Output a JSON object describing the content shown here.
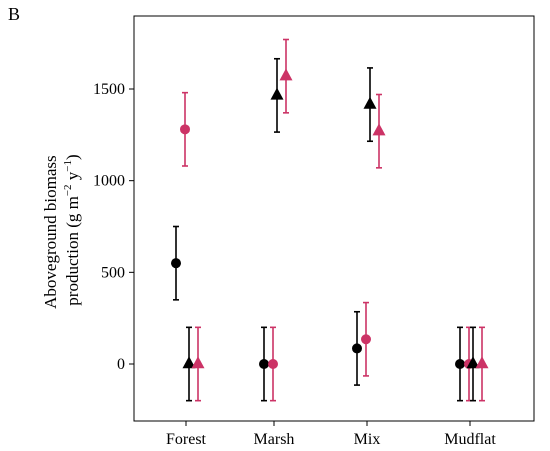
{
  "panel_label": "B",
  "chart_data": {
    "type": "scatter",
    "categories": [
      "Forest",
      "Marsh",
      "Mix",
      "Mudflat"
    ],
    "ylabel_line1": "Aboveground biomass",
    "ylabel_line2_pre": "production (g m",
    "ylabel_line2_sup1": "−2",
    "ylabel_line2_mid": " y",
    "ylabel_line2_sup2": "−1",
    "ylabel_line2_post": ")",
    "yticks": [
      0,
      500,
      1000,
      1500
    ],
    "ylim": [
      -210,
      1850
    ],
    "grid": false,
    "colors": {
      "black": "#000000",
      "pink": "#cc3366"
    },
    "series": [
      {
        "color": "black",
        "marker": "circle",
        "values": [
          550,
          0,
          85,
          0
        ],
        "err_low": [
          350,
          -200,
          -115,
          -200
        ],
        "err_high": [
          750,
          200,
          285,
          200
        ]
      },
      {
        "color": "pink",
        "marker": "circle",
        "values": [
          1280,
          0,
          135,
          0
        ],
        "err_low": [
          1080,
          -200,
          -65,
          -200
        ],
        "err_high": [
          1480,
          200,
          335,
          200
        ]
      },
      {
        "color": "black",
        "marker": "triangle",
        "values": [
          0,
          1465,
          1415,
          0
        ],
        "err_low": [
          -200,
          1265,
          1215,
          -200
        ],
        "err_high": [
          200,
          1665,
          1615,
          200
        ]
      },
      {
        "color": "pink",
        "marker": "triangle",
        "values": [
          0,
          1570,
          1270,
          0
        ],
        "err_low": [
          -200,
          1370,
          1070,
          -200
        ],
        "err_high": [
          200,
          1770,
          1470,
          200
        ]
      }
    ]
  }
}
